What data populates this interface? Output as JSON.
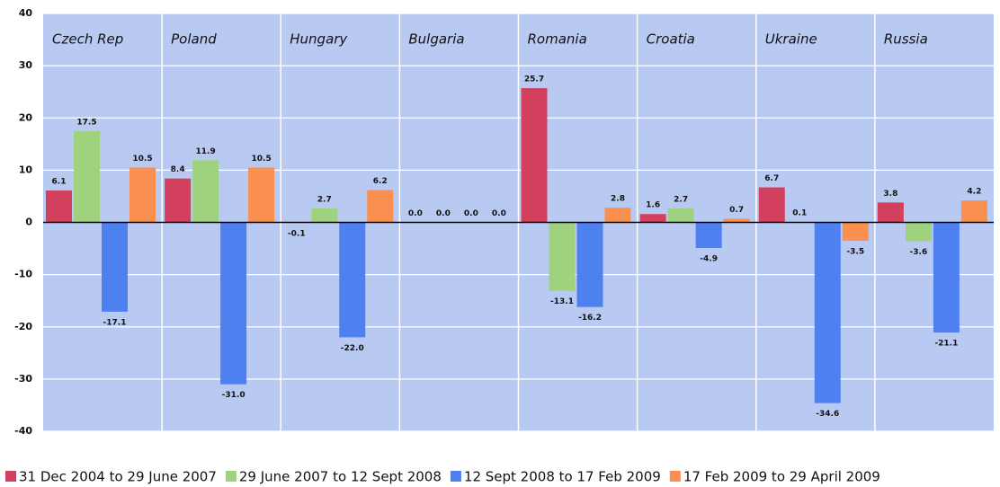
{
  "chart_data": {
    "type": "bar",
    "categories": [
      "Czech Rep",
      "Poland",
      "Hungary",
      "Bulgaria",
      "Romania",
      "Croatia",
      "Ukraine",
      "Russia"
    ],
    "series": [
      {
        "name": "31 Dec 2004 to 29 June 2007",
        "color": "#d2405e",
        "values": [
          6.1,
          8.4,
          -0.1,
          0.0,
          25.7,
          1.6,
          6.7,
          3.8
        ],
        "value_labels": [
          "6.1",
          "8.4",
          "-0.1",
          "0.0",
          "25.7",
          "1.6",
          "6.7",
          "3.8"
        ]
      },
      {
        "name": "29 June 2007 to 12 Sept 2008",
        "color": "#9fd27f",
        "values": [
          17.5,
          11.9,
          2.7,
          0.0,
          -13.1,
          2.7,
          0.1,
          -3.6
        ],
        "value_labels": [
          "17.5",
          "11.9",
          "2.7",
          "0.0",
          "-13.1",
          "2.7",
          "0.1",
          "-3.6"
        ]
      },
      {
        "name": "12 Sept 2008 to 17 Feb 2009",
        "color": "#4f80f0",
        "values": [
          -17.1,
          -31.0,
          -22.0,
          0.0,
          -16.2,
          -4.9,
          -34.6,
          -21.1
        ],
        "value_labels": [
          "-17.1",
          "-31.0",
          "-22.0",
          "0.0",
          "-16.2",
          "-4.9",
          "-34.6",
          "-21.1"
        ]
      },
      {
        "name": "17 Feb 2009 to 29 April 2009",
        "color": "#f9904f",
        "values": [
          10.5,
          10.5,
          6.2,
          0.0,
          2.8,
          0.7,
          -3.5,
          4.2
        ],
        "value_labels": [
          "10.5",
          "10.5",
          "6.2",
          "0.0",
          "2.8",
          "0.7",
          "-3.5",
          "4.2"
        ]
      }
    ],
    "ylim": [
      -40,
      40
    ],
    "yticks": [
      -40,
      -30,
      -20,
      -10,
      0,
      10,
      20,
      30,
      40
    ],
    "grid": true
  }
}
